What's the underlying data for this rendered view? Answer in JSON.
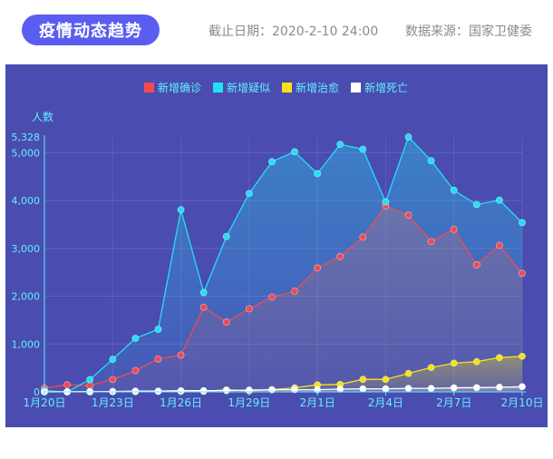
{
  "header": {
    "badge": "疫情动态趋势",
    "cutoff": "截止日期：2020-2-10 24:00",
    "source": "数据来源：国家卫健委"
  },
  "colors": {
    "panel_bg": "#4a4cb0",
    "confirmed": "#f04a55",
    "suspected": "#22e0f5",
    "cured": "#f4e316",
    "death": "#ffffff",
    "axis_text": "#5ff2ff"
  },
  "chart_data": {
    "type": "area",
    "ylabel": "人数",
    "ylim": [
      0,
      5328
    ],
    "yticks": [
      0,
      1000,
      2000,
      3000,
      4000,
      5000,
      5328
    ],
    "ytick_labels": [
      "0",
      "1,000",
      "2,000",
      "3,000",
      "4,000",
      "5,000",
      "5,328"
    ],
    "x": [
      "1月20日",
      "1月21日",
      "1月22日",
      "1月23日",
      "1月24日",
      "1月25日",
      "1月26日",
      "1月27日",
      "1月28日",
      "1月29日",
      "1月30日",
      "1月31日",
      "2月1日",
      "2月2日",
      "2月3日",
      "2月4日",
      "2月5日",
      "2月6日",
      "2月7日",
      "2月8日",
      "2月9日",
      "2月10日"
    ],
    "xtick_labels": [
      "1月20日",
      "1月23日",
      "1月26日",
      "1月29日",
      "2月1日",
      "2月4日",
      "2月7日",
      "2月10日"
    ],
    "xtick_index": [
      0,
      3,
      6,
      9,
      12,
      15,
      18,
      21
    ],
    "legend_position": "top-center",
    "grid": true,
    "series": [
      {
        "name": "新增确诊",
        "color_key": "confirmed",
        "values": [
          77,
          149,
          131,
          259,
          444,
          688,
          769,
          1771,
          1459,
          1737,
          1982,
          2102,
          2590,
          2829,
          3235,
          3887,
          3694,
          3143,
          3399,
          2656,
          3062,
          2478
        ]
      },
      {
        "name": "新增疑似",
        "color_key": "suspected",
        "values": [
          27,
          0,
          257,
          680,
          1118,
          1309,
          3806,
          2077,
          3248,
          4148,
          4812,
          5019,
          4562,
          5173,
          5072,
          3971,
          5328,
          4833,
          4214,
          3916,
          4008,
          3536
        ]
      },
      {
        "name": "新增治愈",
        "color_key": "cured",
        "values": [
          0,
          0,
          0,
          6,
          3,
          11,
          13,
          9,
          43,
          21,
          47,
          85,
          147,
          157,
          262,
          261,
          387,
          510,
          600,
          632,
          716,
          744
        ]
      },
      {
        "name": "新增死亡",
        "color_key": "death",
        "values": [
          0,
          3,
          8,
          8,
          16,
          15,
          24,
          26,
          26,
          38,
          43,
          46,
          45,
          57,
          64,
          65,
          73,
          73,
          86,
          89,
          97,
          108
        ]
      }
    ]
  }
}
